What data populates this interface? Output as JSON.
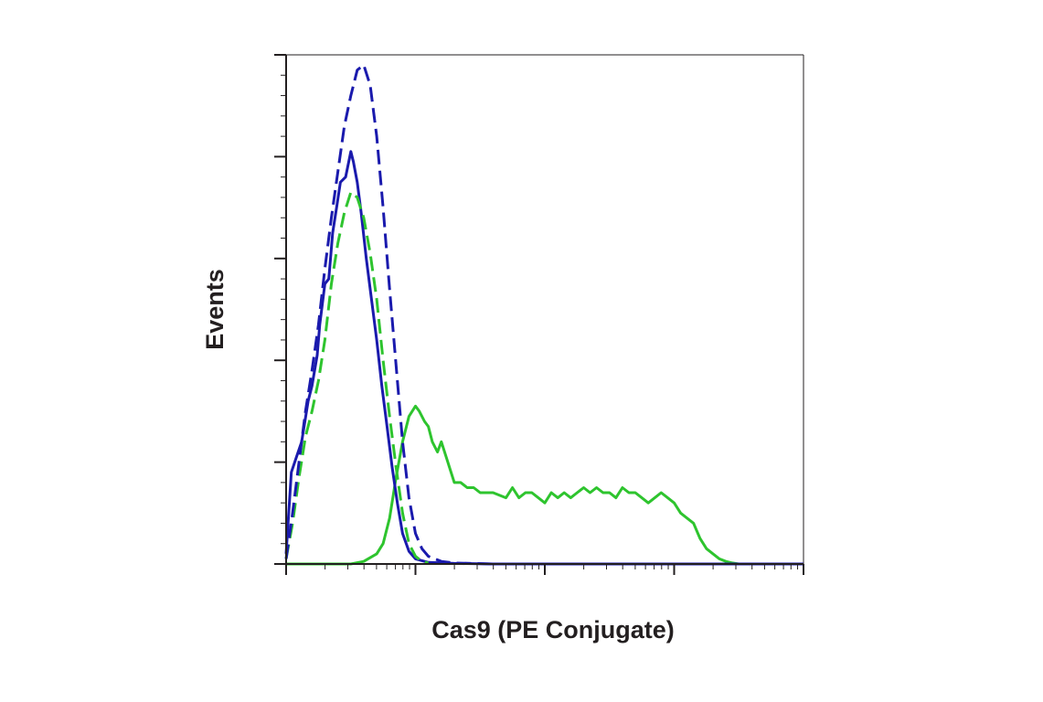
{
  "chart_data": {
    "type": "line",
    "title": "",
    "xlabel": "Cas9 (PE Conjugate)",
    "ylabel": "Events",
    "x_scale": "log",
    "x_decades": 4,
    "xlim": [
      0,
      4
    ],
    "ylim": [
      0,
      100
    ],
    "grid": false,
    "legend": "none",
    "tick_labels_shown": false,
    "series": [
      {
        "color": "#1a1aad",
        "style": "solid",
        "x": [
          0.0,
          0.04,
          0.08,
          0.12,
          0.17,
          0.2,
          0.24,
          0.26,
          0.3,
          0.33,
          0.36,
          0.39,
          0.42,
          0.46,
          0.5,
          0.52,
          0.55,
          0.58,
          0.62,
          0.66,
          0.7,
          0.74,
          0.78,
          0.82,
          0.86,
          0.9,
          0.95,
          1.0,
          1.1,
          1.3,
          1.6,
          2.0,
          2.5,
          3.0,
          4.0
        ],
        "y": [
          2,
          18,
          21,
          24,
          32,
          35,
          41,
          47,
          55,
          56,
          65,
          70,
          75,
          76,
          81,
          79,
          75,
          69,
          60,
          52,
          44,
          35,
          27,
          19,
          12,
          6,
          2.5,
          1,
          0.3,
          0.1,
          0,
          0,
          0,
          0,
          0
        ]
      },
      {
        "color": "#1a1aad",
        "style": "dashed",
        "x": [
          0.0,
          0.05,
          0.1,
          0.15,
          0.2,
          0.25,
          0.3,
          0.35,
          0.4,
          0.45,
          0.5,
          0.55,
          0.6,
          0.65,
          0.7,
          0.75,
          0.8,
          0.85,
          0.9,
          0.95,
          1.0,
          1.05,
          1.1,
          1.15,
          1.2,
          1.3,
          1.6,
          2.0,
          3.0,
          4.0
        ],
        "y": [
          1,
          10,
          20,
          30,
          38,
          47,
          58,
          68,
          77,
          86,
          92,
          97,
          98,
          94,
          84,
          70,
          54,
          39,
          24,
          13,
          6,
          3,
          1.5,
          1,
          0.5,
          0.2,
          0,
          0,
          0,
          0
        ]
      },
      {
        "color": "#2ec42e",
        "style": "dashed",
        "x": [
          0.0,
          0.05,
          0.1,
          0.15,
          0.2,
          0.25,
          0.3,
          0.35,
          0.4,
          0.45,
          0.5,
          0.55,
          0.6,
          0.65,
          0.7,
          0.75,
          0.8,
          0.85,
          0.9,
          0.95,
          1.0,
          1.05,
          1.1,
          1.2,
          1.5,
          2.0,
          3.0,
          4.0
        ],
        "y": [
          1,
          8,
          17,
          25,
          30,
          36,
          44,
          55,
          63,
          69,
          73,
          72,
          68,
          61,
          52,
          40,
          29,
          19,
          10,
          4,
          1.5,
          0.5,
          0.2,
          0,
          0,
          0,
          0,
          0
        ],
        "dash_only_to_x": 1.1
      },
      {
        "color": "#2ec42e",
        "style": "solid",
        "x": [
          0.0,
          0.5,
          0.6,
          0.7,
          0.75,
          0.8,
          0.85,
          0.9,
          0.95,
          1.0,
          1.03,
          1.07,
          1.1,
          1.13,
          1.17,
          1.2,
          1.25,
          1.3,
          1.35,
          1.4,
          1.45,
          1.5,
          1.6,
          1.7,
          1.75,
          1.8,
          1.85,
          1.9,
          1.95,
          2.0,
          2.05,
          2.1,
          2.15,
          2.2,
          2.25,
          2.3,
          2.35,
          2.4,
          2.45,
          2.5,
          2.55,
          2.6,
          2.65,
          2.7,
          2.75,
          2.8,
          2.85,
          2.9,
          2.95,
          3.0,
          3.05,
          3.1,
          3.15,
          3.2,
          3.25,
          3.3,
          3.35,
          3.4,
          3.45,
          3.5,
          3.6,
          3.8,
          4.0
        ],
        "y": [
          0,
          0,
          0.5,
          2,
          4,
          9,
          17,
          24,
          29,
          31,
          30,
          28,
          27,
          24,
          22,
          24,
          20,
          16,
          16,
          15,
          15,
          14,
          14,
          13,
          15,
          13,
          14,
          14,
          13,
          12,
          14,
          13,
          14,
          13,
          14,
          15,
          14,
          15,
          14,
          14,
          13,
          15,
          14,
          14,
          13,
          12,
          13,
          14,
          13,
          12,
          10,
          9,
          8,
          5,
          3,
          2,
          1,
          0.5,
          0.2,
          0,
          0,
          0,
          0
        ]
      }
    ]
  }
}
